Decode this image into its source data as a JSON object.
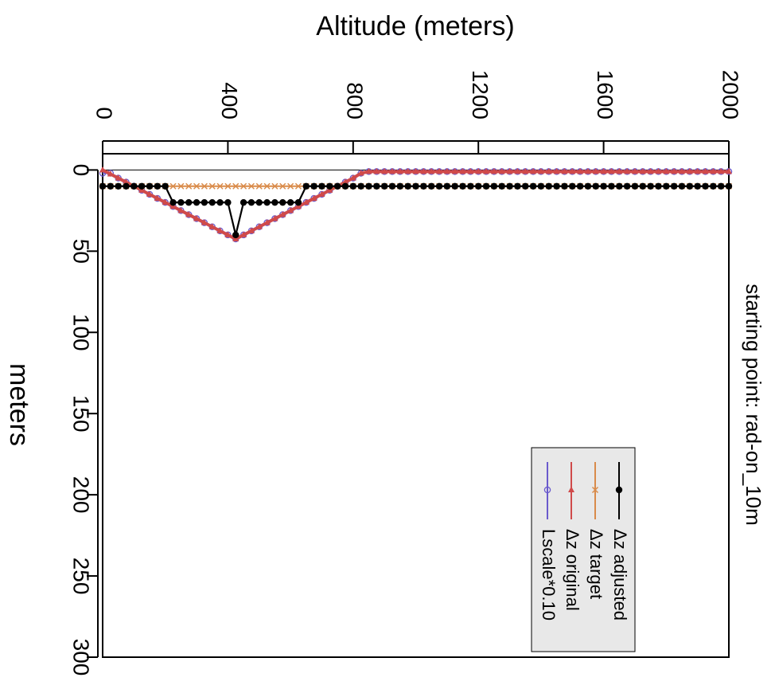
{
  "chart_data": {
    "type": "line",
    "title": "Altitude (meters)",
    "y_label": "meters",
    "annotation": "starting point: rad-on_10m",
    "x": [
      0,
      25,
      50,
      75,
      100,
      125,
      150,
      175,
      200,
      225,
      250,
      275,
      300,
      325,
      350,
      375,
      400,
      425,
      450,
      475,
      500,
      525,
      550,
      575,
      600,
      625,
      650,
      675,
      700,
      725,
      750,
      775,
      800,
      825,
      850,
      875,
      900,
      925,
      950,
      975,
      1000,
      1025,
      1050,
      1075,
      1100,
      1125,
      1150,
      1175,
      1200,
      1225,
      1250,
      1275,
      1300,
      1325,
      1350,
      1375,
      1400,
      1425,
      1450,
      1475,
      1500,
      1525,
      1550,
      1575,
      1600,
      1625,
      1650,
      1675,
      1700,
      1725,
      1750,
      1775,
      1800,
      1825,
      1850,
      1875,
      1900,
      1925,
      1950,
      1975,
      2000
    ],
    "series": [
      {
        "name": "Δz adjusted",
        "color": "#000000",
        "marker": "dot",
        "values": [
          10,
          10,
          10,
          10,
          10,
          10,
          10,
          10,
          10,
          20,
          20,
          20,
          20,
          20,
          20,
          20,
          20,
          40,
          20,
          20,
          20,
          20,
          20,
          20,
          20,
          20,
          10,
          10,
          10,
          10,
          10,
          10,
          10,
          10,
          10,
          10,
          10,
          10,
          10,
          10,
          10,
          10,
          10,
          10,
          10,
          10,
          10,
          10,
          10,
          10,
          10,
          10,
          10,
          10,
          10,
          10,
          10,
          10,
          10,
          10,
          10,
          10,
          10,
          10,
          10,
          10,
          10,
          10,
          10,
          10,
          10,
          10,
          10,
          10,
          10,
          10,
          10,
          10,
          10,
          10,
          10
        ]
      },
      {
        "name": "Δz target",
        "color": "#d98b4a",
        "marker": "x",
        "values": [
          10,
          10,
          10,
          10,
          10,
          10,
          10,
          10,
          10,
          10,
          10,
          10,
          10,
          10,
          10,
          10,
          10,
          10,
          10,
          10,
          10,
          10,
          10,
          10,
          10,
          10,
          10,
          10,
          10,
          10,
          10,
          10,
          10,
          10,
          10,
          10,
          10,
          10,
          10,
          10,
          10,
          10,
          10,
          10,
          10,
          10,
          10,
          10,
          10,
          10,
          10,
          10,
          10,
          10,
          10,
          10,
          10,
          10,
          10,
          10,
          10,
          10,
          10,
          10,
          10,
          10,
          10,
          10,
          10,
          10,
          10,
          10,
          10,
          10,
          10,
          10,
          10,
          10,
          10,
          10,
          10
        ]
      },
      {
        "name": "Δz original",
        "color": "#d04a4a",
        "marker": "star",
        "values": [
          0,
          2.5,
          5,
          7.5,
          10,
          12.5,
          15,
          17.5,
          20,
          22.5,
          25,
          27.5,
          30,
          32.5,
          35,
          37.5,
          40,
          42.5,
          40,
          37.5,
          35,
          32.5,
          30,
          27.5,
          25,
          22.5,
          20,
          17.5,
          15,
          12.5,
          10,
          7.5,
          5,
          2,
          1,
          1,
          1,
          1,
          1,
          1,
          1,
          1,
          1,
          1,
          1,
          1,
          1,
          1,
          1,
          1,
          1,
          1,
          1,
          1,
          1,
          1,
          1,
          1,
          1,
          1,
          1,
          1,
          1,
          1,
          1,
          1,
          1,
          1,
          1,
          1,
          1,
          1,
          1,
          1,
          1,
          1,
          1,
          1,
          1,
          1,
          1
        ]
      },
      {
        "name": "Lscale*0.10",
        "color": "#6a5acd",
        "marker": "circle",
        "values": [
          2,
          2,
          5,
          7.5,
          10,
          12.5,
          15,
          17.5,
          20,
          22.5,
          25,
          27.5,
          30,
          32.5,
          35,
          37.5,
          40,
          42.5,
          40,
          37.5,
          35,
          32.5,
          30,
          27.5,
          25,
          22.5,
          20,
          17.5,
          15,
          12.5,
          10,
          7.5,
          5,
          2,
          1,
          1,
          1,
          1,
          1,
          1,
          1,
          1,
          1,
          1,
          1,
          1,
          1,
          1,
          1,
          1,
          1,
          1,
          1,
          1,
          1,
          1,
          1,
          1,
          1,
          1,
          1,
          1,
          1,
          1,
          1,
          1,
          1,
          1,
          1,
          1,
          1,
          1,
          1,
          1,
          1,
          1,
          1,
          1,
          1,
          1,
          1
        ]
      }
    ],
    "xlim": [
      0,
      2000
    ],
    "xticks": [
      0,
      400,
      800,
      1200,
      1600,
      2000
    ],
    "ylim": [
      -10,
      300
    ],
    "yticks": [
      0,
      50,
      100,
      150,
      200,
      250,
      300
    ]
  }
}
